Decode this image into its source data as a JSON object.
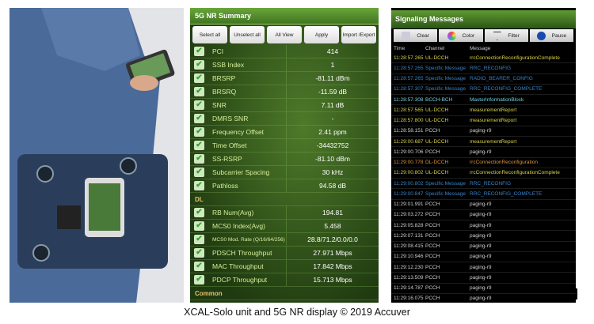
{
  "summary": {
    "title": "5G NR Summary",
    "buttons": [
      "Select all",
      "Unselect all",
      "All View",
      "Apply",
      "Import /Export"
    ],
    "rows": [
      {
        "label": "PCI",
        "value": "414"
      },
      {
        "label": "SSB Index",
        "value": "1"
      },
      {
        "label": "BRSRP",
        "value": "-81.11 dBm"
      },
      {
        "label": "BRSRQ",
        "value": "-11.59 dB"
      },
      {
        "label": "SNR",
        "value": "7.11 dB"
      },
      {
        "label": "DMRS SNR",
        "value": "-"
      },
      {
        "label": "Frequency Offset",
        "value": "2.41 ppm"
      },
      {
        "label": "Time Offset",
        "value": "-34432752"
      },
      {
        "label": "SS-RSRP",
        "value": "-81.10 dBm"
      },
      {
        "label": "Subcarrier Spacing",
        "value": "30 kHz"
      },
      {
        "label": "Pathloss",
        "value": "94.58 dB"
      }
    ],
    "dl_section": "DL",
    "dl_rows": [
      {
        "label": "RB Num(Avg)",
        "value": "194.81"
      },
      {
        "label": "MCS0 Index(Avg)",
        "value": "5.458"
      },
      {
        "label": "MCS0 Mod. Rate (Q/16/64/256)",
        "value": "28.8/71.2/0.0/0.0"
      },
      {
        "label": "PDSCH Throughput",
        "value": "27.971 Mbps"
      },
      {
        "label": "MAC Throughput",
        "value": "17.842 Mbps"
      },
      {
        "label": "PDCP Throughput",
        "value": "15.713 Mbps"
      }
    ],
    "common_section": "Common"
  },
  "signaling": {
    "title": "Signaling Messages",
    "toolbar": [
      {
        "label": "Clear",
        "icon": "clear-icon"
      },
      {
        "label": "Color",
        "icon": "color-icon"
      },
      {
        "label": "Filter",
        "icon": "filter-icon"
      },
      {
        "label": "Pause",
        "icon": "pause-icon"
      }
    ],
    "columns": [
      "Time",
      "Channel",
      "Message"
    ],
    "colors": {
      "UL-DCCH": "#d8d24a",
      "Specific Message": "#3b82c4",
      "BCCH-BCH": "#6fd3dc",
      "PCCH": "#d0d0d0",
      "DL-DCCH": "#d99443"
    },
    "messages": [
      [
        "11:28:57.265",
        "UL-DCCH",
        "rrcConnectionReconfigurationComplete"
      ],
      [
        "11:28:57.265",
        "Specific Message",
        "RRC_RECONFIG"
      ],
      [
        "11:28:57.265",
        "Specific Message",
        "RADIO_BEARER_CONFIG"
      ],
      [
        "11:28:57.307",
        "Specific Message",
        "RRC_RECONFIG_COMPLETE"
      ],
      [
        "11:28:57.308",
        "BCCH-BCH",
        "MasterInformationBlock"
      ],
      [
        "11:28:57.565",
        "UL-DCCH",
        "measurementReport"
      ],
      [
        "11:28:57.800",
        "UL-DCCH",
        "measurementReport"
      ],
      [
        "11:28:58.151",
        "PCCH",
        "paging-r9"
      ],
      [
        "11:29:00.687",
        "UL-DCCH",
        "measurementReport"
      ],
      [
        "11:29:00.706",
        "PCCH",
        "paging-r9"
      ],
      [
        "11:29:00.778",
        "DL-DCCH",
        "rrcConnectionReconfiguration"
      ],
      [
        "11:29:00.802",
        "UL-DCCH",
        "rrcConnectionReconfigurationComplete"
      ],
      [
        "11:29:00.802",
        "Specific Message",
        "RRC_RECONFIG"
      ],
      [
        "11:29:00.847",
        "Specific Message",
        "RRC_RECONFIG_COMPLETE"
      ],
      [
        "11:29:01.991",
        "PCCH",
        "paging-r9"
      ],
      [
        "11:29:03.272",
        "PCCH",
        "paging-r9"
      ],
      [
        "11:29:05.828",
        "PCCH",
        "paging-r9"
      ],
      [
        "11:29:07.131",
        "PCCH",
        "paging-r9"
      ],
      [
        "11:29:08.415",
        "PCCH",
        "paging-r9"
      ],
      [
        "11:29:10.946",
        "PCCH",
        "paging-r9"
      ],
      [
        "11:29:12.230",
        "PCCH",
        "paging-r9"
      ],
      [
        "11:29:13.509",
        "PCCH",
        "paging-r9"
      ],
      [
        "11:29:14.787",
        "PCCH",
        "paging-r9"
      ],
      [
        "11:29:16.075",
        "PCCH",
        "paging-r9"
      ]
    ]
  },
  "caption": "XCAL-Solo unit and 5G NR display © 2019 Accuver"
}
